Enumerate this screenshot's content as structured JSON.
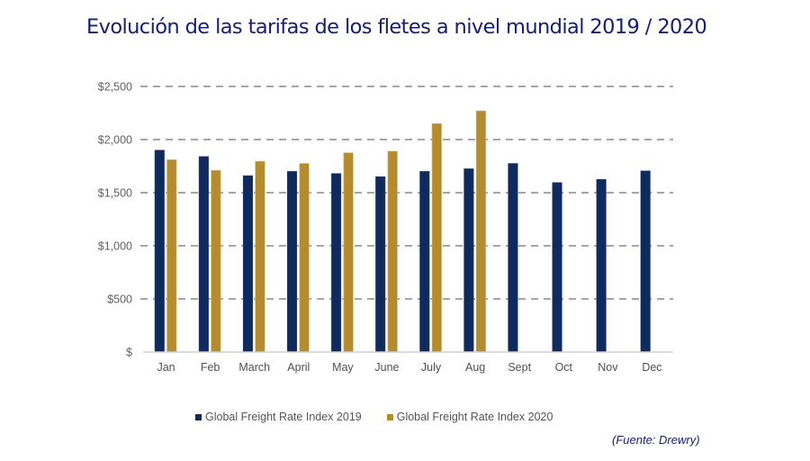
{
  "chart_data": {
    "type": "bar",
    "title": "Evolución de las tarifas de los fletes a nivel mundial 2019 / 2020",
    "xlabel": "",
    "ylabel": "",
    "ylim": [
      0,
      2500
    ],
    "yticks": [
      0,
      500,
      1000,
      1500,
      2000,
      2500
    ],
    "ytick_labels": [
      "$",
      "$500",
      "$1,000",
      "$1,500",
      "$2,000",
      "$2,500"
    ],
    "grid": true,
    "categories": [
      "Jan",
      "Feb",
      "March",
      "April",
      "May",
      "June",
      "July",
      "Aug",
      "Sept",
      "Oct",
      "Nov",
      "Dec"
    ],
    "series": [
      {
        "name": "Global Freight Rate Index 2019",
        "color": "#0f2a5c",
        "values": [
          1900,
          1840,
          1660,
          1700,
          1680,
          1650,
          1700,
          1725,
          1775,
          1595,
          1625,
          1705
        ]
      },
      {
        "name": "Global Freight Rate Index 2020",
        "color": "#b58b30",
        "values": [
          1810,
          1710,
          1795,
          1775,
          1875,
          1890,
          2150,
          2270,
          null,
          null,
          null,
          null
        ]
      }
    ],
    "legend_position": "bottom",
    "annotation": "(Fuente: Drewry)"
  }
}
